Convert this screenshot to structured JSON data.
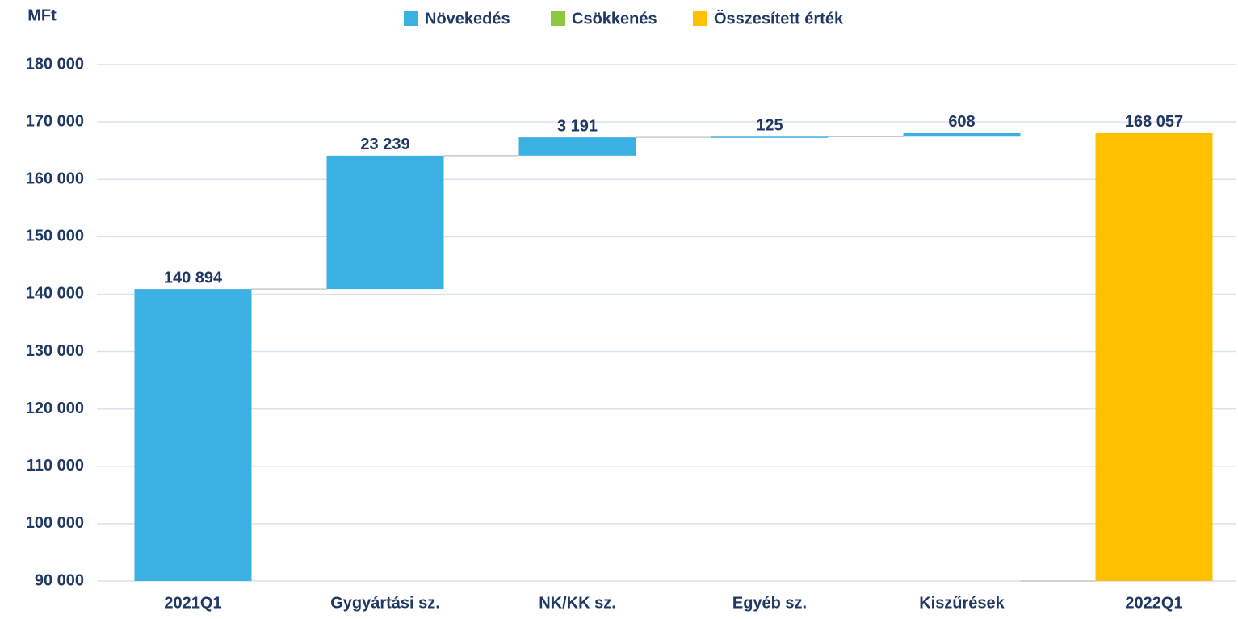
{
  "chart_data": {
    "type": "waterfall",
    "y_label": "MFt",
    "categories": [
      "2021Q1",
      "Gygyártási sz.",
      "NK/KK sz.",
      "Egyéb sz.",
      "Kiszűrések",
      "2022Q1"
    ],
    "series": [
      {
        "name": "Növekedés",
        "color": "#3bb1e3",
        "values": [
          140894,
          23239,
          3191,
          125,
          608,
          null
        ],
        "value_labels": [
          "140 894",
          "23 239",
          "3 191",
          "125",
          "608",
          null
        ]
      },
      {
        "name": "Csökkenés",
        "color": "#8dc63f",
        "values": [
          null,
          null,
          null,
          null,
          null,
          null
        ]
      },
      {
        "name": "Összesített érték",
        "color": "#ffc000",
        "values": [
          null,
          null,
          null,
          null,
          null,
          168057
        ],
        "value_labels": [
          null,
          null,
          null,
          null,
          null,
          "168 057"
        ]
      }
    ],
    "total_series": "Összesített érték",
    "ylim": [
      90000,
      180000
    ],
    "yticks": [
      {
        "value": 90000,
        "label": "90 000"
      },
      {
        "value": 100000,
        "label": "100 000"
      },
      {
        "value": 110000,
        "label": "110 000"
      },
      {
        "value": 120000,
        "label": "120 000"
      },
      {
        "value": 130000,
        "label": "130 000"
      },
      {
        "value": 140000,
        "label": "140 000"
      },
      {
        "value": 150000,
        "label": "150 000"
      },
      {
        "value": 160000,
        "label": "160 000"
      },
      {
        "value": 170000,
        "label": "170 000"
      },
      {
        "value": 180000,
        "label": "180 000"
      }
    ],
    "grid": true,
    "legend": "top"
  }
}
